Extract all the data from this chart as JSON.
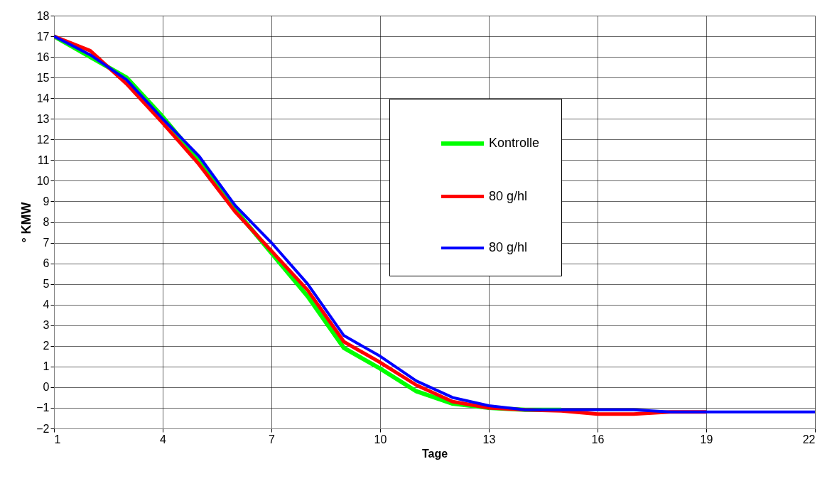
{
  "chart_data": {
    "type": "line",
    "xlabel": "Tage",
    "ylabel": "° KMW",
    "x": [
      1,
      2,
      3,
      4,
      5,
      6,
      7,
      8,
      9,
      10,
      11,
      12,
      13,
      14,
      15,
      16,
      17,
      18,
      19,
      20,
      21,
      22
    ],
    "series": [
      {
        "name": "Kontrolle",
        "color": "#00ff00",
        "values": [
          17,
          16,
          15,
          13.1,
          11,
          8.6,
          6.5,
          4.4,
          1.9,
          0.9,
          -0.2,
          -0.8,
          -1,
          -1.1,
          -1.1,
          null,
          null,
          null,
          null,
          null,
          null,
          null
        ]
      },
      {
        "name": "80 g/hl",
        "color": "#ff0000",
        "values": [
          17,
          16.3,
          14.7,
          12.8,
          10.8,
          8.5,
          6.6,
          4.7,
          2.2,
          1.2,
          0.1,
          -0.7,
          -1,
          -1.1,
          -1.15,
          -1.3,
          -1.3,
          -1.2,
          -1.2,
          null,
          null,
          null
        ]
      },
      {
        "name": "80 g/hl",
        "color": "#0000ff",
        "values": [
          17,
          16.1,
          14.9,
          13,
          11.2,
          8.8,
          7,
          5,
          2.5,
          1.5,
          0.3,
          -0.5,
          -0.9,
          -1.1,
          -1.1,
          -1.1,
          -1.1,
          -1.2,
          -1.2,
          -1.2,
          -1.2,
          -1.2
        ]
      }
    ],
    "xlim": [
      1,
      22
    ],
    "xticks": [
      1,
      4,
      7,
      10,
      13,
      16,
      19,
      22
    ],
    "ylim": [
      -2,
      18
    ],
    "yticks": [
      -2,
      -1,
      0,
      1,
      2,
      3,
      4,
      5,
      6,
      7,
      8,
      9,
      10,
      11,
      12,
      13,
      14,
      15,
      16,
      17,
      18
    ],
    "grid": true,
    "legend": "top right",
    "marker": "none",
    "line_style": "solid"
  }
}
